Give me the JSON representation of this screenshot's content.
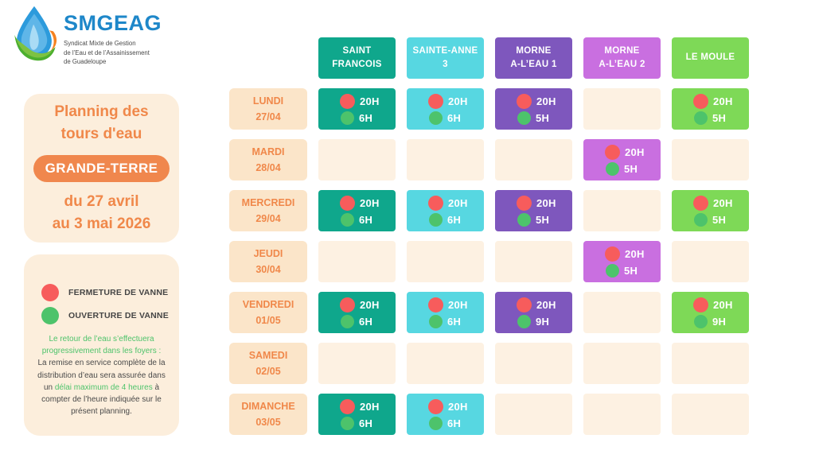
{
  "colors": {
    "accent_orange": "#F0874D",
    "title_orange": "#F0884A",
    "card_cream": "#FCEEDC",
    "label_cream": "#FBE5C9",
    "empty_cell_cream": "#FDF1E2",
    "red_dot": "#F75C5C",
    "green_dot": "#4DC36B",
    "text_dark": "#4A4A4A",
    "green_text": "#4EC36B",
    "brand_blue": "#1E87C9"
  },
  "brand": {
    "name": "SMGEAG",
    "subtitle_lines": [
      "Syndicat Mixte de Gestion",
      "de l’Eau et de l’Assainissement",
      "de Guadeloupe"
    ]
  },
  "title_card": {
    "title_line1": "Planning des",
    "title_line2": "tours d'eau",
    "region_badge": "GRANDE-TERRE",
    "period_line1": "du 27 avril",
    "period_line2": "au 3 mai 2026"
  },
  "legend": {
    "items": [
      {
        "id": "close",
        "label": "FERMETURE DE VANNE",
        "color": "#F75C5C"
      },
      {
        "id": "open",
        "label": "OUVERTURE DE VANNE",
        "color": "#4DC36B"
      }
    ],
    "note_segments": [
      {
        "text": "Le retour de l’eau s’effectuera progressivement dans les foyers :\n",
        "style": "green"
      },
      {
        "text": "La remise en service complète de la distribution d’eau sera assurée dans un ",
        "style": "dark"
      },
      {
        "text": "délai maximum de 4 heures",
        "style": "green"
      },
      {
        "text": " à compter de l’heure indiquée sur le présent planning.",
        "style": "dark"
      }
    ]
  },
  "table": {
    "columns": [
      {
        "id": "saint-francois",
        "lines": [
          "SAINT",
          "FRANCOIS"
        ],
        "color": "#0FA78C"
      },
      {
        "id": "sainte-anne-3",
        "lines": [
          "SAINTE-ANNE",
          "3"
        ],
        "color": "#57D7E1"
      },
      {
        "id": "morne-a-leau-1",
        "lines": [
          "MORNE",
          "A-L’EAU 1"
        ],
        "color": "#7E57BD"
      },
      {
        "id": "morne-a-leau-2",
        "lines": [
          "MORNE",
          "A-L’EAU 2"
        ],
        "color": "#C96FE0"
      },
      {
        "id": "le-moule",
        "lines": [
          "LE MOULE"
        ],
        "color": "#7ED957"
      }
    ],
    "rows": [
      {
        "day": "LUNDI",
        "date": "27/04",
        "cells": [
          {
            "close": "20H",
            "open": "6H"
          },
          {
            "close": "20H",
            "open": "6H"
          },
          {
            "close": "20H",
            "open": "5H"
          },
          null,
          {
            "close": "20H",
            "open": "5H"
          }
        ]
      },
      {
        "day": "MARDI",
        "date": "28/04",
        "cells": [
          null,
          null,
          null,
          {
            "close": "20H",
            "open": "5H"
          },
          null
        ]
      },
      {
        "day": "MERCREDI",
        "date": "29/04",
        "cells": [
          {
            "close": "20H",
            "open": "6H"
          },
          {
            "close": "20H",
            "open": "6H"
          },
          {
            "close": "20H",
            "open": "5H"
          },
          null,
          {
            "close": "20H",
            "open": "5H"
          }
        ]
      },
      {
        "day": "JEUDI",
        "date": "30/04",
        "cells": [
          null,
          null,
          null,
          {
            "close": "20H",
            "open": "5H"
          },
          null
        ]
      },
      {
        "day": "VENDREDI",
        "date": "01/05",
        "cells": [
          {
            "close": "20H",
            "open": "6H"
          },
          {
            "close": "20H",
            "open": "6H"
          },
          {
            "close": "20H",
            "open": "9H"
          },
          null,
          {
            "close": "20H",
            "open": "9H"
          }
        ]
      },
      {
        "day": "SAMEDI",
        "date": "02/05",
        "cells": [
          null,
          null,
          null,
          null,
          null
        ]
      },
      {
        "day": "DIMANCHE",
        "date": "03/05",
        "cells": [
          {
            "close": "20H",
            "open": "6H"
          },
          {
            "close": "20H",
            "open": "6H"
          },
          null,
          null,
          null
        ]
      }
    ]
  }
}
